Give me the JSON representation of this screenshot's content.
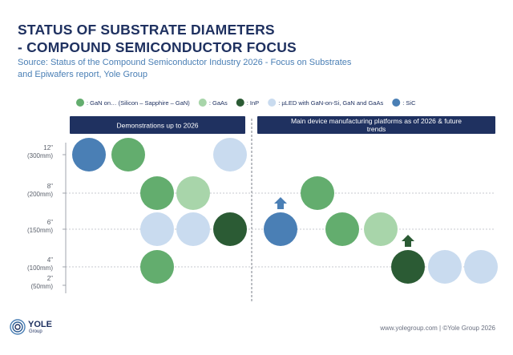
{
  "title_lines": [
    "STATUS OF SUBSTRATE DIAMETERS",
    "- COMPOUND SEMICONDUCTOR FOCUS"
  ],
  "subtitle_lines": [
    "Source: Status of the Compound Semiconductor Industry 2026 - Focus on Substrates",
    "and Epiwafers report, Yole Group"
  ],
  "colors": {
    "title": "#1f3160",
    "subtitle": "#4a7fb5",
    "panel_header": "#1f3160",
    "gan": "#63ad6e",
    "gaas": "#a8d5aa",
    "inp": "#2b5b34",
    "microled": "#c9dbef",
    "sic": "#4a7fb5"
  },
  "chart_data": {
    "type": "scatter",
    "legend_position": "top",
    "legend": [
      {
        "key": "gan",
        "label": ": GaN on… (Silicon – Sapphire – GaN)"
      },
      {
        "key": "gaas",
        "label": ": GaAs"
      },
      {
        "key": "inp",
        "label": ": InP"
      },
      {
        "key": "microled",
        "label": ": µLED with GaN-on-Si, GaN and GaAs"
      },
      {
        "key": "sic",
        "label": ": SiC"
      }
    ],
    "y_ticks": [
      {
        "value": 12,
        "line1": "12\"",
        "line2": "(300mm)"
      },
      {
        "value": 8,
        "line1": "8\"",
        "line2": "(200mm)"
      },
      {
        "value": 6,
        "line1": "6\"",
        "line2": "(150mm)"
      },
      {
        "value": 4,
        "line1": "4\"",
        "line2": "(100mm)"
      },
      {
        "value": 2,
        "line1": "2\"",
        "line2": "(50mm)"
      }
    ],
    "gridlines_at": [
      8,
      6,
      4
    ],
    "panels": [
      {
        "header": "Demonstrations up to 2026",
        "points": [
          {
            "key": "sic",
            "y": 12
          },
          {
            "key": "gan",
            "y": 12
          },
          {
            "key": "microled",
            "y": 12
          },
          {
            "key": "gan",
            "y": 8
          },
          {
            "key": "gaas",
            "y": 8
          },
          {
            "key": "microled",
            "y": 6
          },
          {
            "key": "microled",
            "y": 6
          },
          {
            "key": "inp",
            "y": 6
          },
          {
            "key": "gan",
            "y": 4
          }
        ]
      },
      {
        "header": "Main device manufacturing platforms as of 2026 & future trends",
        "points": [
          {
            "key": "sic",
            "y": 6,
            "trend": "up"
          },
          {
            "key": "gan",
            "y": 8
          },
          {
            "key": "gan",
            "y": 6
          },
          {
            "key": "gaas",
            "y": 6
          },
          {
            "key": "inp",
            "y": 4,
            "trend": "up"
          },
          {
            "key": "microled",
            "y": 4
          },
          {
            "key": "microled",
            "y": 4
          }
        ]
      }
    ]
  },
  "footer": {
    "url": "www.yolegroup.com | ©Yole Group 2026",
    "logo_name": "YOLE",
    "logo_sub": "Group"
  }
}
